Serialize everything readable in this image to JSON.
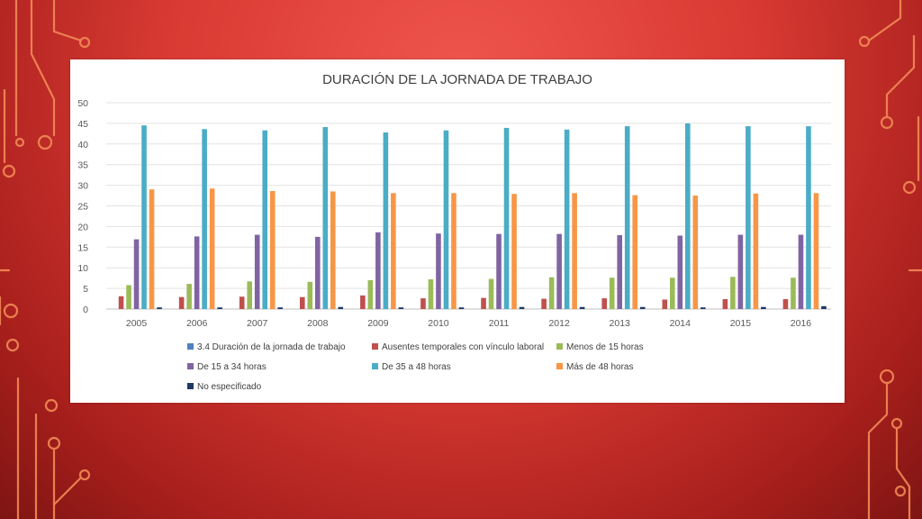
{
  "colors": {
    "background": "#d93a33",
    "circuit_lines": "#f28a56"
  },
  "chart_data": {
    "type": "bar",
    "title": "DURACIÓN DE LA JORNADA DE TRABAJO",
    "xlabel": "",
    "ylabel": "",
    "ylim": [
      0,
      50
    ],
    "yticks": [
      0,
      5,
      10,
      15,
      20,
      25,
      30,
      35,
      40,
      45,
      50
    ],
    "grid": true,
    "legend_position": "bottom",
    "categories": [
      "2005",
      "2006",
      "2007",
      "2008",
      "2009",
      "2010",
      "2011",
      "2012",
      "2013",
      "2014",
      "2015",
      "2016"
    ],
    "series": [
      {
        "name": "3.4 Duración de la jornada de trabajo",
        "color": "#4f81bd",
        "values": [
          0,
          0,
          0,
          0,
          0,
          0,
          0,
          0,
          0,
          0,
          0,
          0
        ]
      },
      {
        "name": "Ausentes temporales con vínculo laboral",
        "color": "#c0504d",
        "values": [
          3.1,
          2.9,
          3.0,
          2.9,
          3.3,
          2.6,
          2.7,
          2.5,
          2.6,
          2.3,
          2.4,
          2.4
        ]
      },
      {
        "name": "Menos de 15 horas",
        "color": "#9bbb59",
        "values": [
          5.8,
          6.1,
          6.7,
          6.6,
          7.0,
          7.2,
          7.3,
          7.7,
          7.6,
          7.6,
          7.8,
          7.6
        ]
      },
      {
        "name": "De 15 a 34 horas",
        "color": "#8064a2",
        "values": [
          16.9,
          17.6,
          18.0,
          17.5,
          18.6,
          18.3,
          18.2,
          18.2,
          17.9,
          17.8,
          18.0,
          18.0
        ]
      },
      {
        "name": "De 35 a 48 horas",
        "color": "#4bacc6",
        "values": [
          44.5,
          43.6,
          43.3,
          44.1,
          42.8,
          43.3,
          43.9,
          43.5,
          44.3,
          45.0,
          44.3,
          44.3
        ]
      },
      {
        "name": "Más de 48 horas",
        "color": "#f79646",
        "values": [
          29.0,
          29.2,
          28.6,
          28.5,
          28.1,
          28.1,
          27.9,
          28.1,
          27.6,
          27.5,
          28.0,
          28.1
        ]
      },
      {
        "name": "No especificado",
        "color": "#1f3864",
        "values": [
          0.4,
          0.4,
          0.4,
          0.5,
          0.4,
          0.4,
          0.5,
          0.5,
          0.5,
          0.4,
          0.5,
          0.7
        ]
      }
    ]
  }
}
